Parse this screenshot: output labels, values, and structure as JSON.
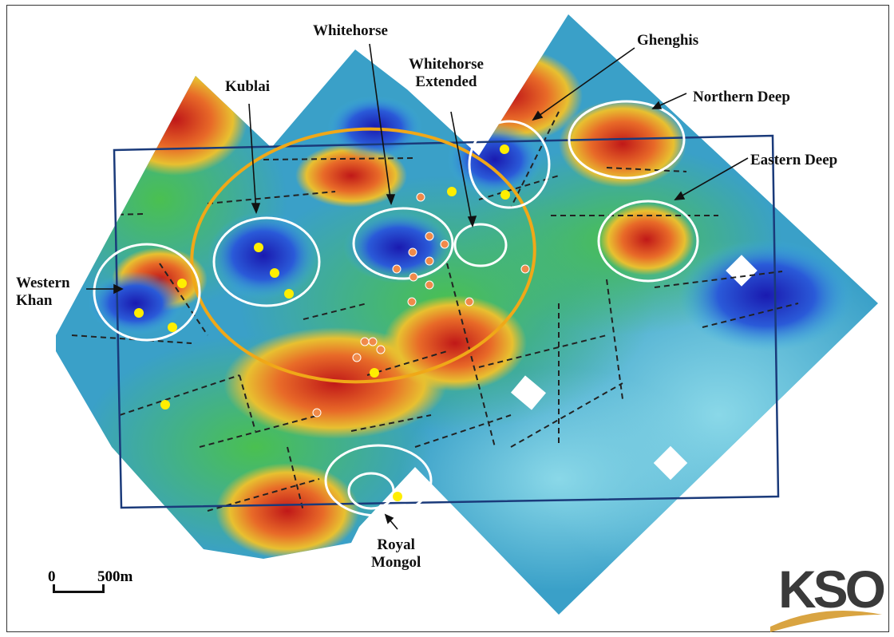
{
  "labels": {
    "whitehorse": "Whitehorse",
    "whitehorse_extended": "Whitehorse\nExtended",
    "ghenghis": "Ghenghis",
    "northern_deep": "Northern Deep",
    "eastern_deep": "Eastern Deep",
    "kublai": "Kublai",
    "western_khan": "Western\nKhan",
    "royal_mongol": "Royal\nMongol"
  },
  "scale_bar": {
    "zero": "0",
    "distance": "500m"
  },
  "logo": {
    "text": "KSO"
  },
  "colors": {
    "boundary_box": "#1a3a7a",
    "target_outline": "#ffffff",
    "major_ring": "#f0a818",
    "drillhole_yellow": "#ffee00",
    "drillhole_orange": "#f08a4a",
    "fault_lines": "#222222",
    "logo_swoosh": "#d9a441"
  },
  "icons": {
    "drillhole": "circle-marker",
    "north": "none"
  }
}
